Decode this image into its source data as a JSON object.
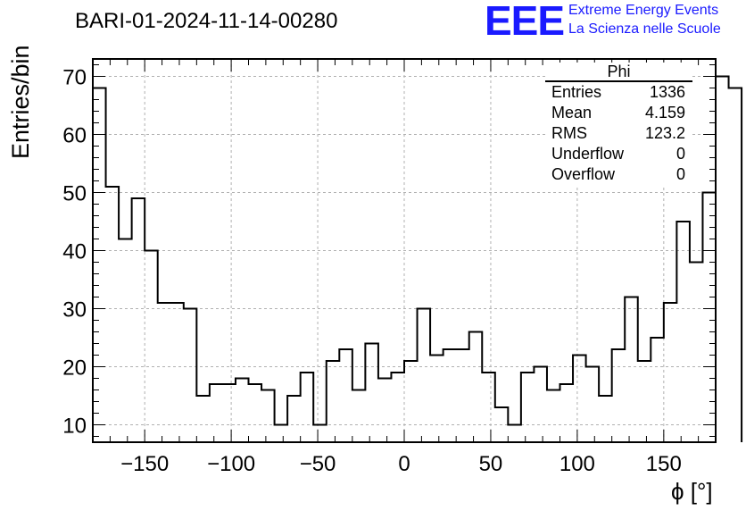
{
  "title": "BARI-01-2024-11-14-00280",
  "logo": {
    "mark": "EEE",
    "line1": "Extreme Energy Events",
    "line2": "La Scienza nelle Scuole",
    "color": "#1a1aff"
  },
  "stats_box": {
    "title": "Phi",
    "rows": [
      {
        "label": "Entries",
        "value": "1336"
      },
      {
        "label": "Mean",
        "value": "4.159"
      },
      {
        "label": "RMS",
        "value": "123.2"
      },
      {
        "label": "Underflow",
        "value": "0"
      },
      {
        "label": "Overflow",
        "value": "0"
      }
    ]
  },
  "chart_data": {
    "type": "bar",
    "style": "step-histogram",
    "title": "BARI-01-2024-11-14-00280",
    "xlabel": "ϕ [°]",
    "ylabel": "Entries/bin",
    "xlim": [
      -180,
      180
    ],
    "ylim": [
      7,
      73
    ],
    "bin_width": 7.5,
    "x_ticks": [
      -150,
      -100,
      -50,
      0,
      50,
      100,
      150
    ],
    "x_tick_labels": [
      "−150",
      "−100",
      "−50",
      "0",
      "50",
      "100",
      "150"
    ],
    "y_ticks": [
      10,
      20,
      30,
      40,
      50,
      60,
      70
    ],
    "y_tick_labels": [
      "10",
      "20",
      "30",
      "40",
      "50",
      "60",
      "70"
    ],
    "grid": true,
    "line_color": "#000000",
    "values": [
      68,
      51,
      42,
      49,
      40,
      31,
      31,
      30,
      15,
      17,
      17,
      18,
      17,
      16,
      10,
      15,
      19,
      10,
      21,
      23,
      16,
      24,
      18,
      19,
      21,
      30,
      22,
      23,
      23,
      26,
      19,
      13,
      10,
      19,
      20,
      16,
      17,
      22,
      20,
      15,
      23,
      32,
      21,
      25,
      31,
      45,
      38,
      50,
      70,
      68
    ]
  }
}
